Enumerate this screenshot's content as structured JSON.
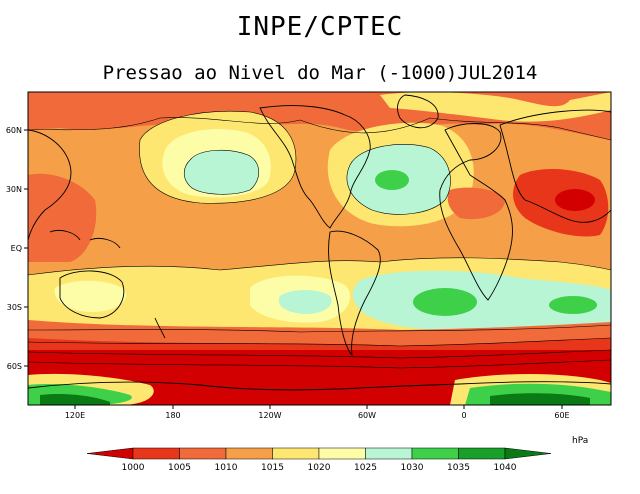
{
  "header": {
    "title": "INPE/CPTEC",
    "subtitle": "Pressao ao Nivel do Mar (-1000)JUL2014"
  },
  "map": {
    "variable": "Sea level pressure",
    "lat_labels": [
      "60N",
      "30N",
      "EQ",
      "30S",
      "60S"
    ],
    "lon_labels": [
      "120E",
      "180",
      "120W",
      "60W",
      "0",
      "60E"
    ]
  },
  "colorbar": {
    "unit": "hPa",
    "levels": [
      "1000",
      "1005",
      "1010",
      "1015",
      "1020",
      "1025",
      "1030",
      "1035",
      "1040"
    ],
    "colors": [
      "#d20000",
      "#e8361a",
      "#f06a3a",
      "#f5a049",
      "#fde770",
      "#fdfda8",
      "#b8f5d4",
      "#3fd04a",
      "#18a02a",
      "#0a7a14"
    ]
  }
}
